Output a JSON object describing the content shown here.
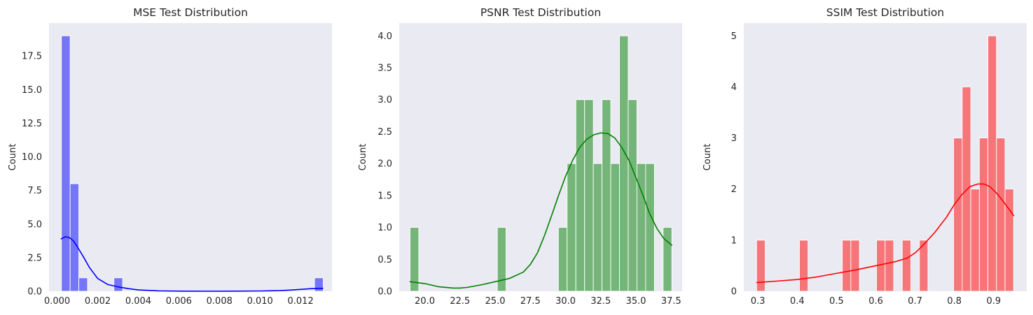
{
  "chart_data": [
    {
      "type": "histogram",
      "title": "MSE Test Distribution",
      "xlabel": "",
      "ylabel": "Count",
      "bar_color": "#0000ff",
      "bar_alpha": 0.5,
      "kde_color": "#0000ff",
      "xlim": [
        -0.0004,
        0.01355
      ],
      "ylim": [
        0,
        19.95
      ],
      "xticks": [
        0.0,
        0.002,
        0.004,
        0.006,
        0.008,
        0.01,
        0.012
      ],
      "xtick_labels": [
        "0.000",
        "0.002",
        "0.004",
        "0.006",
        "0.008",
        "0.010",
        "0.012"
      ],
      "yticks": [
        0,
        2.5,
        5.0,
        7.5,
        10.0,
        12.5,
        15.0,
        17.5
      ],
      "ytick_labels": [
        "0.0",
        "2.5",
        "5.0",
        "7.5",
        "10.0",
        "12.5",
        "15.0",
        "17.5"
      ],
      "bins": [
        {
          "x0": 0.00021,
          "x1": 0.00064,
          "count": 19
        },
        {
          "x0": 0.00064,
          "x1": 0.00107,
          "count": 8
        },
        {
          "x0": 0.00107,
          "x1": 0.0015,
          "count": 1
        },
        {
          "x0": 0.0028,
          "x1": 0.00323,
          "count": 1
        },
        {
          "x0": 0.01269,
          "x1": 0.01312,
          "count": 1
        }
      ],
      "kde": {
        "x": [
          0.0002,
          0.0004,
          0.0006,
          0.0008,
          0.001,
          0.0013,
          0.0016,
          0.002,
          0.0025,
          0.003,
          0.0035,
          0.004,
          0.005,
          0.006,
          0.007,
          0.008,
          0.009,
          0.01,
          0.011,
          0.0115,
          0.012,
          0.0125,
          0.0131
        ],
        "y": [
          3.9,
          4.05,
          4.0,
          3.75,
          3.3,
          2.55,
          1.75,
          0.95,
          0.5,
          0.33,
          0.2,
          0.1,
          0.03,
          0.01,
          0.005,
          0.005,
          0.01,
          0.02,
          0.05,
          0.09,
          0.14,
          0.19,
          0.22
        ]
      }
    },
    {
      "type": "histogram",
      "title": "PSNR Test Distribution",
      "xlabel": "",
      "ylabel": "Count",
      "bar_color": "#008000",
      "bar_alpha": 0.5,
      "kde_color": "#008000",
      "xlim": [
        18.18,
        38.28
      ],
      "ylim": [
        0,
        4.2
      ],
      "xticks": [
        20.0,
        22.5,
        25.0,
        27.5,
        30.0,
        32.5,
        35.0,
        37.5
      ],
      "xtick_labels": [
        "20.0",
        "22.5",
        "25.0",
        "27.5",
        "30.0",
        "32.5",
        "35.0",
        "37.5"
      ],
      "yticks": [
        0,
        0.5,
        1.0,
        1.5,
        2.0,
        2.5,
        3.0,
        3.5,
        4.0
      ],
      "ytick_labels": [
        "0.0",
        "0.5",
        "1.0",
        "1.5",
        "2.0",
        "2.5",
        "3.0",
        "3.5",
        "4.0"
      ],
      "bins": [
        {
          "x0": 18.95,
          "x1": 19.57,
          "count": 1
        },
        {
          "x0": 25.15,
          "x1": 25.77,
          "count": 1
        },
        {
          "x0": 29.49,
          "x1": 30.11,
          "count": 1
        },
        {
          "x0": 30.11,
          "x1": 30.73,
          "count": 2
        },
        {
          "x0": 30.73,
          "x1": 31.35,
          "count": 3
        },
        {
          "x0": 31.35,
          "x1": 31.97,
          "count": 3
        },
        {
          "x0": 31.97,
          "x1": 32.59,
          "count": 2
        },
        {
          "x0": 32.59,
          "x1": 33.21,
          "count": 3
        },
        {
          "x0": 33.21,
          "x1": 33.83,
          "count": 2
        },
        {
          "x0": 33.83,
          "x1": 34.45,
          "count": 4
        },
        {
          "x0": 34.45,
          "x1": 35.07,
          "count": 3
        },
        {
          "x0": 35.07,
          "x1": 35.69,
          "count": 2
        },
        {
          "x0": 35.69,
          "x1": 36.31,
          "count": 2
        },
        {
          "x0": 36.93,
          "x1": 37.55,
          "count": 1
        }
      ],
      "kde": {
        "x": [
          18.95,
          20,
          21,
          22,
          22.5,
          23,
          24,
          25,
          26,
          27,
          27.5,
          28,
          28.5,
          29,
          29.5,
          30,
          30.5,
          31,
          31.5,
          32,
          32.5,
          33,
          33.5,
          34,
          34.5,
          35,
          35.5,
          36,
          36.5,
          37,
          37.55
        ],
        "y": [
          0.15,
          0.12,
          0.07,
          0.05,
          0.05,
          0.06,
          0.1,
          0.15,
          0.2,
          0.3,
          0.42,
          0.6,
          0.87,
          1.18,
          1.5,
          1.8,
          2.05,
          2.25,
          2.38,
          2.45,
          2.48,
          2.47,
          2.4,
          2.25,
          2.05,
          1.78,
          1.5,
          1.2,
          0.98,
          0.82,
          0.72
        ]
      }
    },
    {
      "type": "histogram",
      "title": "SSIM Test Distribution",
      "xlabel": "",
      "ylabel": "Count",
      "bar_color": "#ff0000",
      "bar_alpha": 0.5,
      "kde_color": "#ff0000",
      "xlim": [
        0.264,
        0.984
      ],
      "ylim": [
        0,
        5.25
      ],
      "xticks": [
        0.3,
        0.4,
        0.5,
        0.6,
        0.7,
        0.8,
        0.9
      ],
      "xtick_labels": [
        "0.3",
        "0.4",
        "0.5",
        "0.6",
        "0.7",
        "0.8",
        "0.9"
      ],
      "yticks": [
        0,
        1,
        2,
        3,
        4,
        5
      ],
      "ytick_labels": [
        "0",
        "1",
        "2",
        "3",
        "4",
        "5"
      ],
      "bins": [
        {
          "x0": 0.2967,
          "x1": 0.3185,
          "count": 1
        },
        {
          "x0": 0.4057,
          "x1": 0.4275,
          "count": 1
        },
        {
          "x0": 0.5147,
          "x1": 0.5365,
          "count": 1
        },
        {
          "x0": 0.5365,
          "x1": 0.5583,
          "count": 1
        },
        {
          "x0": 0.6019,
          "x1": 0.6237,
          "count": 1
        },
        {
          "x0": 0.6237,
          "x1": 0.6455,
          "count": 1
        },
        {
          "x0": 0.6673,
          "x1": 0.6891,
          "count": 1
        },
        {
          "x0": 0.7109,
          "x1": 0.7327,
          "count": 1
        },
        {
          "x0": 0.7981,
          "x1": 0.8199,
          "count": 3
        },
        {
          "x0": 0.8199,
          "x1": 0.8417,
          "count": 4
        },
        {
          "x0": 0.8417,
          "x1": 0.8635,
          "count": 2
        },
        {
          "x0": 0.8635,
          "x1": 0.8853,
          "count": 3
        },
        {
          "x0": 0.8853,
          "x1": 0.9071,
          "count": 5
        },
        {
          "x0": 0.9071,
          "x1": 0.9289,
          "count": 3
        },
        {
          "x0": 0.9289,
          "x1": 0.9507,
          "count": 2
        }
      ],
      "kde": {
        "x": [
          0.297,
          0.35,
          0.4,
          0.45,
          0.5,
          0.55,
          0.6,
          0.65,
          0.68,
          0.7,
          0.72,
          0.75,
          0.78,
          0.8,
          0.82,
          0.84,
          0.86,
          0.875,
          0.89,
          0.91,
          0.93,
          0.951
        ],
        "y": [
          0.17,
          0.2,
          0.23,
          0.28,
          0.35,
          0.42,
          0.5,
          0.58,
          0.65,
          0.75,
          0.9,
          1.15,
          1.45,
          1.7,
          1.9,
          2.05,
          2.1,
          2.1,
          2.05,
          1.9,
          1.7,
          1.48
        ]
      }
    }
  ]
}
